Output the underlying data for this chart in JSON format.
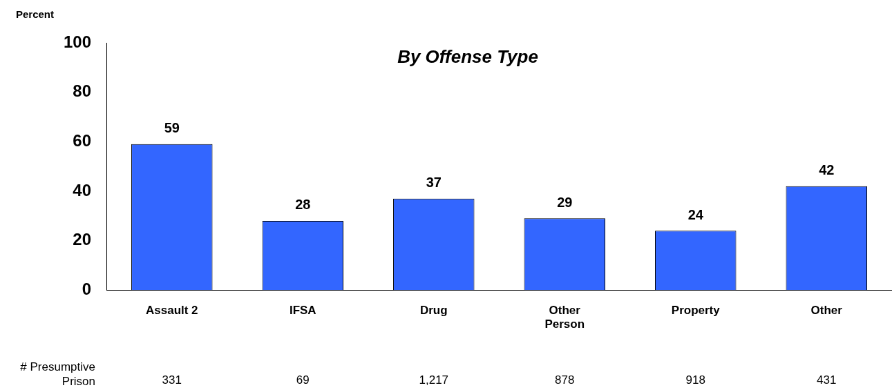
{
  "chart_data": {
    "type": "bar",
    "title": "By Offense Type",
    "ylabel": "Percent",
    "categories": [
      "Assault 2",
      "IFSA",
      "Drug",
      "Other Person",
      "Property",
      "Other"
    ],
    "values": [
      59,
      28,
      37,
      29,
      24,
      42
    ],
    "color": "#3366ff",
    "ylim": [
      0,
      100
    ],
    "yticks": [
      0,
      20,
      40,
      60,
      80,
      100
    ],
    "grid": false,
    "legend": false,
    "data_labels": true,
    "annotations": [
      "# Presumptive Prison",
      "331",
      "69",
      "1,217",
      "878",
      "918",
      "431"
    ]
  }
}
